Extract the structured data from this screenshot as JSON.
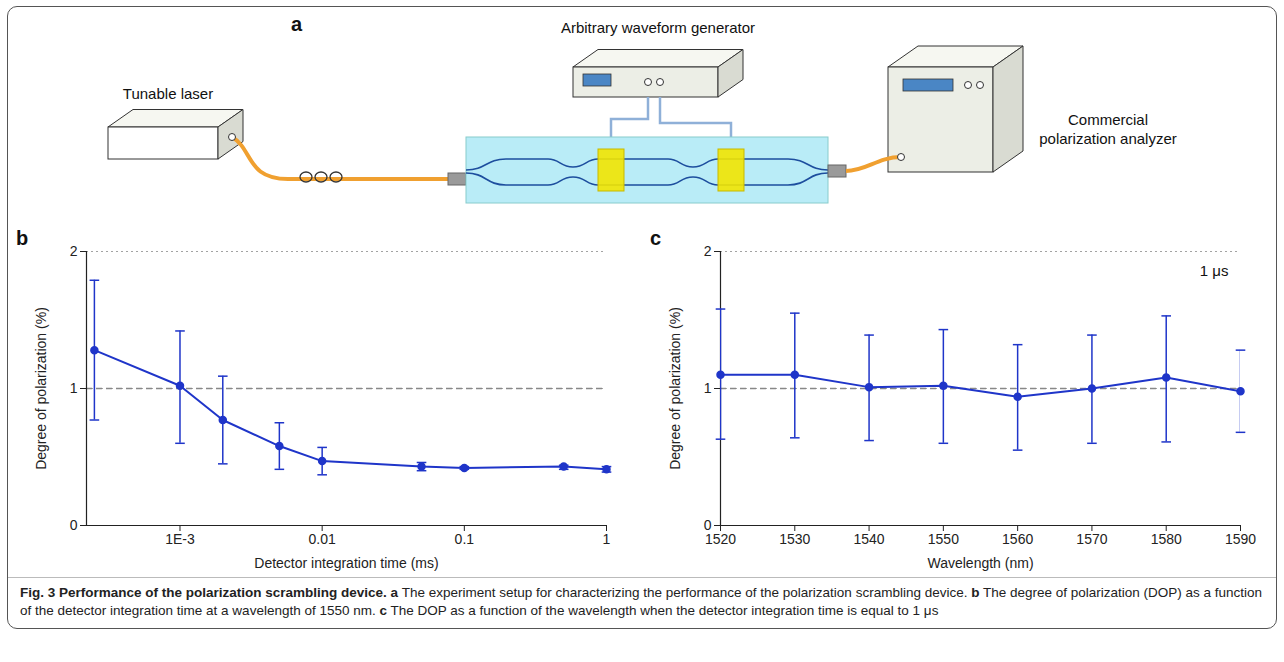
{
  "figure": {
    "panel_a": {
      "panel": "a",
      "labels": {
        "generator": "Arbitrary waveform generator",
        "laser": "Tunable laser",
        "analyzer": "Commercial polarization analyzer"
      }
    },
    "caption": [
      {
        "text": "Fig. 3 Performance of the polarization scrambling device.",
        "bold": true
      },
      {
        "text": "a",
        "bold": true
      },
      {
        "text": "The experiment setup for characterizing the performance of the polarization scrambling device.",
        "bold": false
      },
      {
        "text": "b",
        "bold": true
      },
      {
        "text": "The degree of polarization (DOP) as a function of the detector integration time at a wavelength of 1550 nm.",
        "bold": false
      },
      {
        "text": "c",
        "bold": true
      },
      {
        "text": "The DOP as a function of the wavelength when the detector integration time is equal to 1 μs",
        "bold": false
      }
    ]
  },
  "chart_data": [
    {
      "panel": "b",
      "type": "line",
      "xlabel": "Detector integration time (ms)",
      "ylabel": "Degree of polarization (%)",
      "log": "x",
      "grid": true,
      "marker": "circle",
      "line_style": "solid",
      "color": "#1f35c9",
      "x": [
        0.00025,
        0.001,
        0.002,
        0.005,
        0.01,
        0.05,
        0.1,
        0.5,
        1
      ],
      "values": [
        1.28,
        1.02,
        0.77,
        0.58,
        0.47,
        0.43,
        0.42,
        0.43,
        0.41
      ],
      "error_low": [
        0.77,
        0.6,
        0.45,
        0.41,
        0.37,
        0.4,
        0.41,
        0.41,
        0.39
      ],
      "error_high": [
        1.79,
        1.42,
        1.09,
        0.75,
        0.57,
        0.46,
        0.43,
        0.44,
        0.43
      ],
      "xlim": [
        0.00022,
        1
      ],
      "xticks": [
        {
          "value": 0.001,
          "label": "1E-3"
        },
        0.01,
        0.1,
        1
      ],
      "ylim": [
        0,
        2
      ],
      "yticks": [
        0,
        1,
        2
      ],
      "reference_line": {
        "value": 1,
        "line_style": "dashed"
      }
    },
    {
      "panel": "c",
      "type": "line",
      "xlabel": "Wavelength (nm)",
      "ylabel": "Degree of polarization (%)",
      "grid": true,
      "marker": "circle",
      "line_style": "solid",
      "color": "#1f35c9",
      "annotations": [
        "1 μs"
      ],
      "x": [
        1520,
        1530,
        1540,
        1550,
        1560,
        1570,
        1580,
        1590
      ],
      "values": [
        1.1,
        1.1,
        1.01,
        1.02,
        0.94,
        1.0,
        1.08,
        0.98
      ],
      "error_low": [
        0.63,
        0.64,
        0.62,
        0.6,
        0.55,
        0.6,
        0.61,
        0.68
      ],
      "error_high": [
        1.58,
        1.55,
        1.39,
        1.43,
        1.32,
        1.39,
        1.53,
        1.28
      ],
      "xlim": [
        1520,
        1590
      ],
      "xticks": [
        1520,
        1530,
        1540,
        1550,
        1560,
        1570,
        1580,
        1590
      ],
      "ylim": [
        0,
        2
      ],
      "yticks": [
        0,
        1,
        2
      ],
      "reference_line": {
        "value": 1,
        "line_style": "dashed"
      }
    }
  ]
}
